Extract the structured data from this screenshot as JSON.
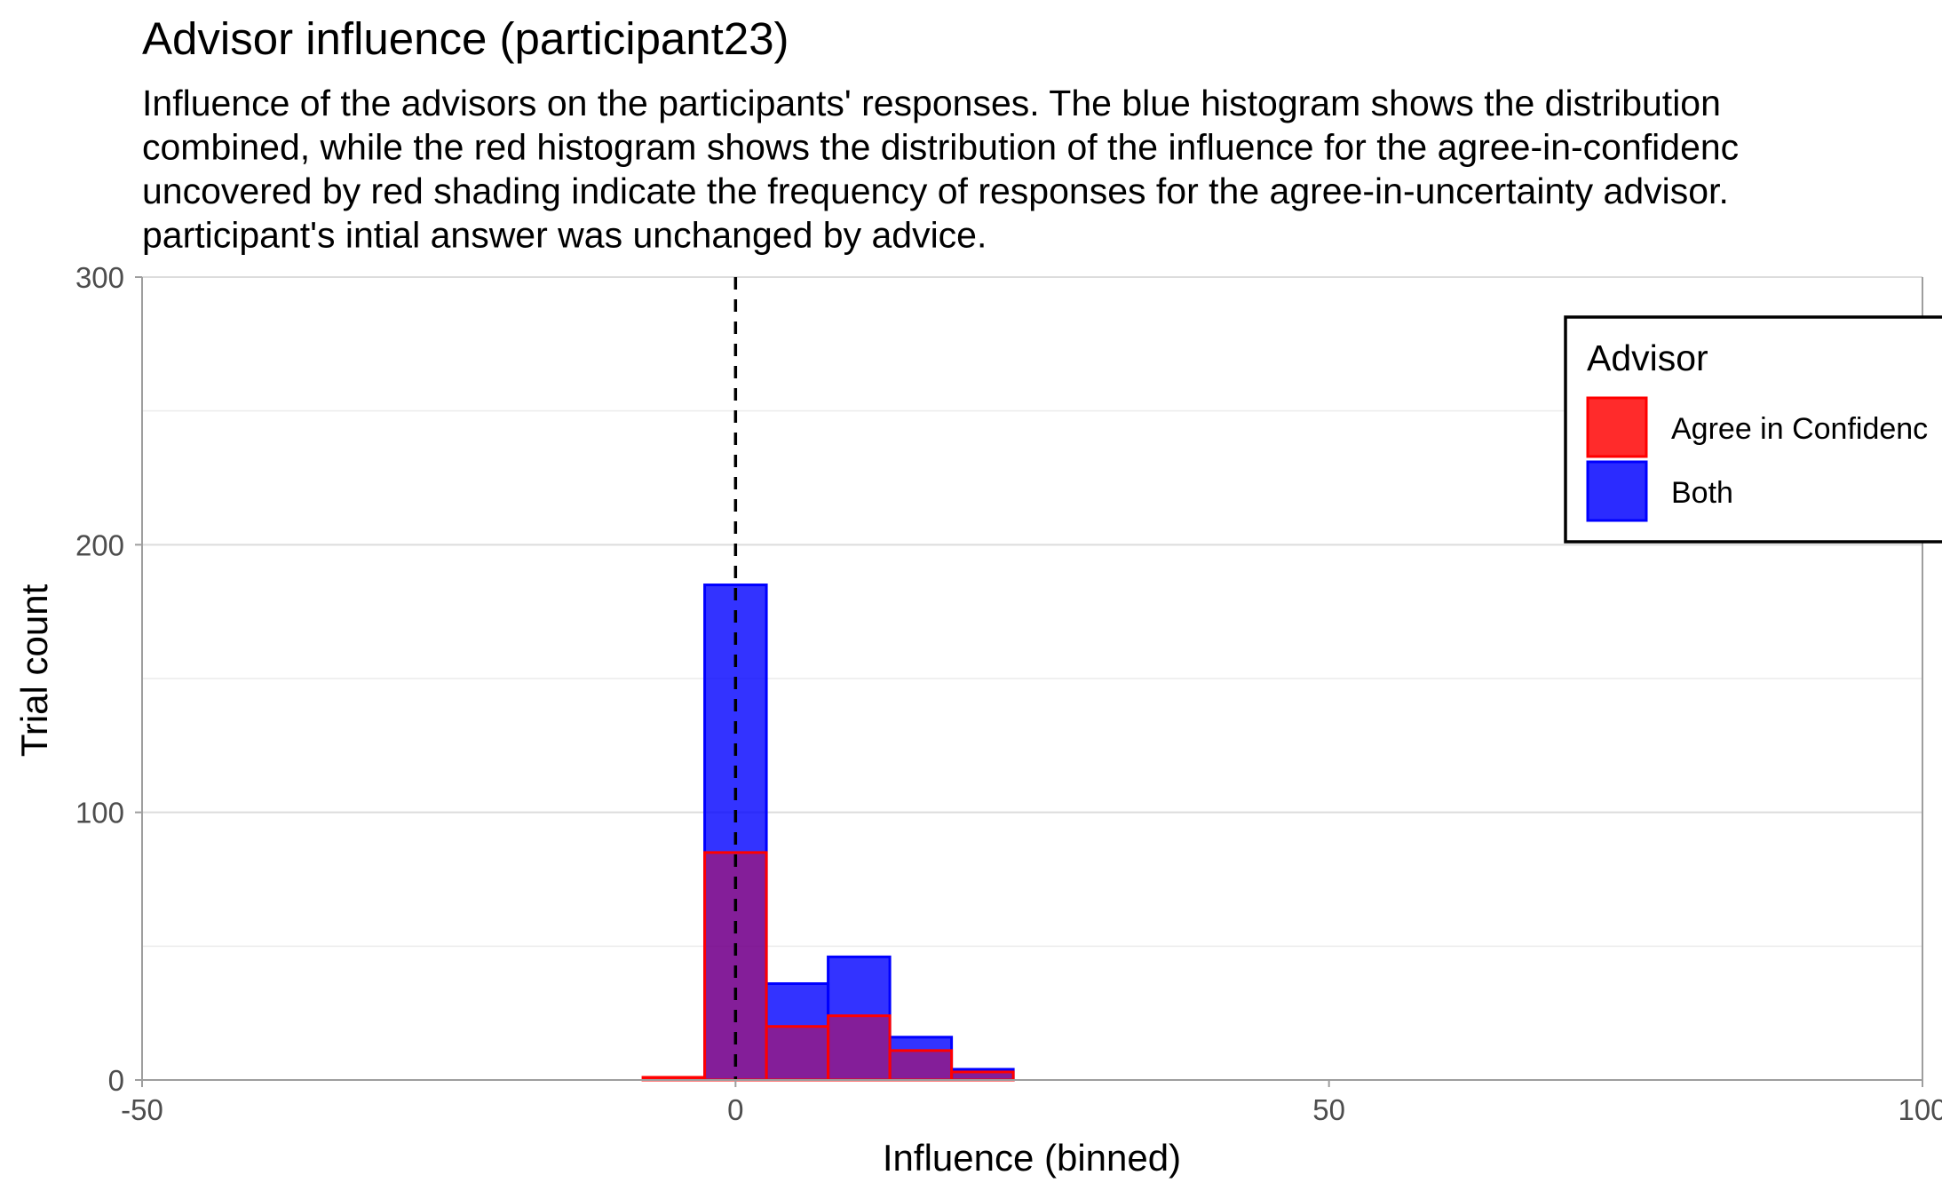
{
  "chart_data": {
    "type": "bar",
    "title": "Advisor influence (participant23)",
    "subtitle": [
      "Influence of the advisors on the participants' responses.  The blue histogram shows the distribution",
      "combined, while the red histogram shows the distribution of the influence for the agree-in-confidenc",
      "uncovered by red shading indicate the frequency of responses for the agree-in-uncertainty advisor.",
      "participant's intial answer was unchanged by advice."
    ],
    "xlabel": "Influence (binned)",
    "ylabel": "Trial count",
    "xlim": [
      -50,
      100
    ],
    "ylim": [
      0,
      300
    ],
    "x_ticks": [
      -50,
      0,
      50,
      100
    ],
    "x_tick_labels": [
      "-50",
      "0",
      "50",
      "100"
    ],
    "y_ticks": [
      0,
      100,
      200,
      300
    ],
    "y_tick_labels": [
      "0",
      "100",
      "200",
      "300"
    ],
    "y_minor_gridlines": [
      50,
      150,
      250
    ],
    "grid": true,
    "bin_width": 5.2,
    "reference_line": {
      "x": 0,
      "style": "dashed"
    },
    "legend": {
      "title": "Advisor",
      "placement": "top-right",
      "entries": [
        "Agree in Confidenc",
        "Both"
      ]
    },
    "series": [
      {
        "name": "Both",
        "fill": "#0000ff",
        "stroke": "#0000ff",
        "opacity": 0.8,
        "bins": [
          {
            "x0": -2.6,
            "x1": 2.6,
            "value": 185
          },
          {
            "x0": 2.6,
            "x1": 7.8,
            "value": 36
          },
          {
            "x0": 7.8,
            "x1": 13.0,
            "value": 46
          },
          {
            "x0": 13.0,
            "x1": 18.2,
            "value": 16
          },
          {
            "x0": 18.2,
            "x1": 23.4,
            "value": 4
          }
        ]
      },
      {
        "name": "Agree in Confidenc",
        "fill": "#ff0000",
        "stroke": "#ff0000",
        "opacity": 0.4,
        "bins": [
          {
            "x0": -7.8,
            "x1": -2.6,
            "value": 1
          },
          {
            "x0": -2.6,
            "x1": 2.6,
            "value": 85
          },
          {
            "x0": 2.6,
            "x1": 7.8,
            "value": 20
          },
          {
            "x0": 7.8,
            "x1": 13.0,
            "value": 24
          },
          {
            "x0": 13.0,
            "x1": 18.2,
            "value": 11
          },
          {
            "x0": 18.2,
            "x1": 23.4,
            "value": 3
          }
        ]
      }
    ]
  }
}
